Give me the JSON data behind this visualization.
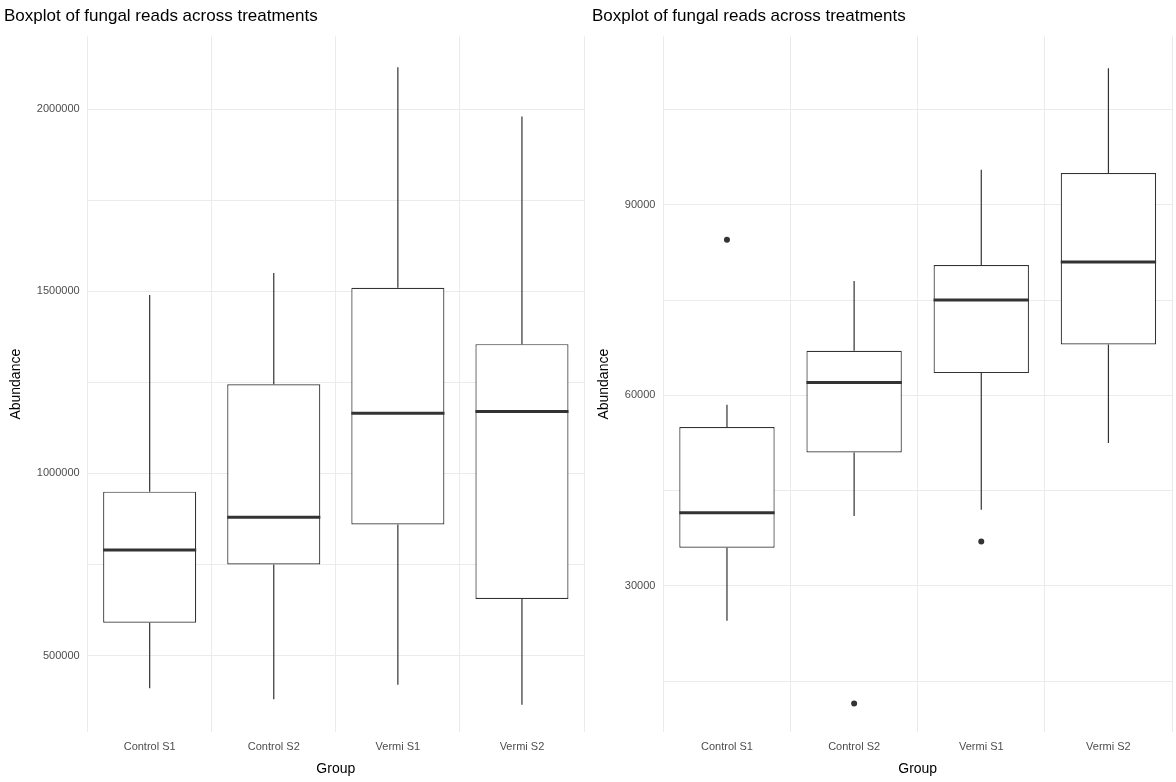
{
  "chart_data": [
    {
      "type": "box",
      "title": "Boxplot of fungal reads across treatments",
      "xlabel": "Group",
      "ylabel": "Abundance",
      "categories": [
        "Control S1",
        "Control S2",
        "Vermi S1",
        "Vermi S2"
      ],
      "boxes": [
        {
          "low": 410000,
          "q1": 590000,
          "median": 790000,
          "q3": 950000,
          "high": 1490000
        },
        {
          "low": 380000,
          "q1": 750000,
          "median": 880000,
          "q3": 1245000,
          "high": 1550000
        },
        {
          "low": 420000,
          "q1": 860000,
          "median": 1165000,
          "q3": 1510000,
          "high": 2115000
        },
        {
          "low": 365000,
          "q1": 655000,
          "median": 1170000,
          "q3": 1355000,
          "high": 1980000
        }
      ],
      "ylim": [
        290000,
        2200000
      ],
      "yticks": [
        500000,
        {
          "value": 750000,
          "label": null
        },
        1000000,
        {
          "value": 1250000,
          "label": null
        },
        1500000,
        {
          "value": 1750000,
          "label": null
        },
        2000000
      ],
      "grid": true
    },
    {
      "type": "box",
      "title": "Boxplot of fungal reads across treatments",
      "xlabel": "Group",
      "ylabel": "Abundance",
      "categories": [
        "Control S1",
        "Control S2",
        "Vermi S1",
        "Vermi S2"
      ],
      "boxes": [
        {
          "low": 24500,
          "q1": 36000,
          "median": 41500,
          "q3": 55000,
          "high": 58500,
          "outliers": [
            84500
          ]
        },
        {
          "low": 41000,
          "q1": 51000,
          "median": 62000,
          "q3": 67000,
          "high": 78000,
          "outliers": [
            11500
          ]
        },
        {
          "low": 42000,
          "q1": 63500,
          "median": 75000,
          "q3": 80500,
          "high": 95500,
          "outliers": [
            37000
          ]
        },
        {
          "low": 52500,
          "q1": 68000,
          "median": 81000,
          "q3": 95000,
          "high": 111500
        }
      ],
      "ylim": [
        7000,
        116500
      ],
      "yticks": [
        {
          "value": 15000,
          "label": null
        },
        30000,
        {
          "value": 45000,
          "label": null
        },
        60000,
        {
          "value": 75000,
          "label": null
        },
        90000,
        {
          "value": 105000,
          "label": null
        }
      ],
      "grid": true
    }
  ]
}
